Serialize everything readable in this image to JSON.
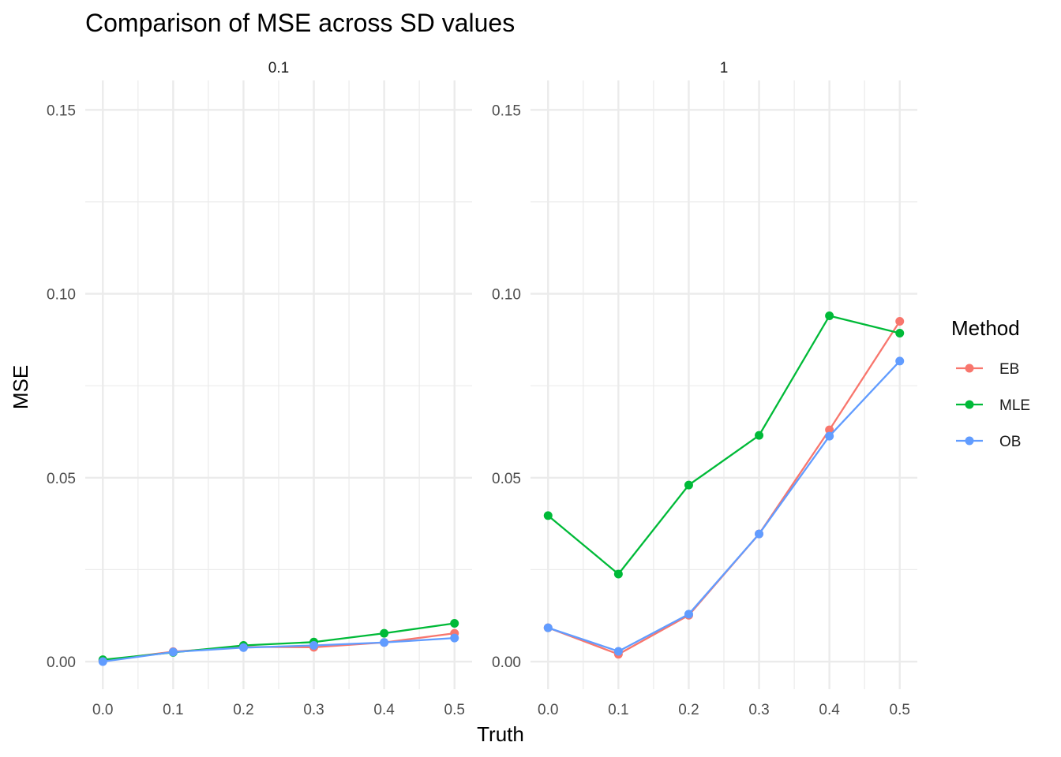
{
  "chart_data": {
    "type": "line",
    "title": "Comparison of MSE across SD values",
    "xlabel": "Truth",
    "ylabel": "MSE",
    "legend_title": "Method",
    "legend_position": "right",
    "grid": true,
    "x": [
      0.0,
      0.1,
      0.2,
      0.3,
      0.4,
      0.5
    ],
    "x_tick_labels": [
      "0.0",
      "0.1",
      "0.2",
      "0.3",
      "0.4",
      "0.5"
    ],
    "xlim": [
      -0.025,
      0.525
    ],
    "ylim": [
      -0.0075,
      0.158
    ],
    "y_ticks": [
      0.0,
      0.05,
      0.1,
      0.15
    ],
    "y_tick_labels": [
      "0.00",
      "0.05",
      "0.10",
      "0.15"
    ],
    "series_colors": {
      "EB": "#F8766D",
      "MLE": "#00BA38",
      "OB": "#619CFF"
    },
    "panels": [
      {
        "facet_label": "0.1",
        "series": [
          {
            "name": "EB",
            "values": [
              0.0003,
              0.0027,
              0.004,
              0.0039,
              0.0052,
              0.0077
            ]
          },
          {
            "name": "MLE",
            "values": [
              0.0005,
              0.0025,
              0.0044,
              0.0053,
              0.0077,
              0.0104
            ]
          },
          {
            "name": "OB",
            "values": [
              0.0,
              0.0026,
              0.0038,
              0.0044,
              0.0052,
              0.0064
            ]
          }
        ]
      },
      {
        "facet_label": "1",
        "series": [
          {
            "name": "EB",
            "values": [
              0.0092,
              0.002,
              0.0126,
              0.0347,
              0.063,
              0.0925
            ]
          },
          {
            "name": "MLE",
            "values": [
              0.0397,
              0.0238,
              0.048,
              0.0615,
              0.094,
              0.0893
            ]
          },
          {
            "name": "OB",
            "values": [
              0.0092,
              0.0028,
              0.0129,
              0.0347,
              0.0613,
              0.0817
            ]
          }
        ]
      }
    ]
  }
}
